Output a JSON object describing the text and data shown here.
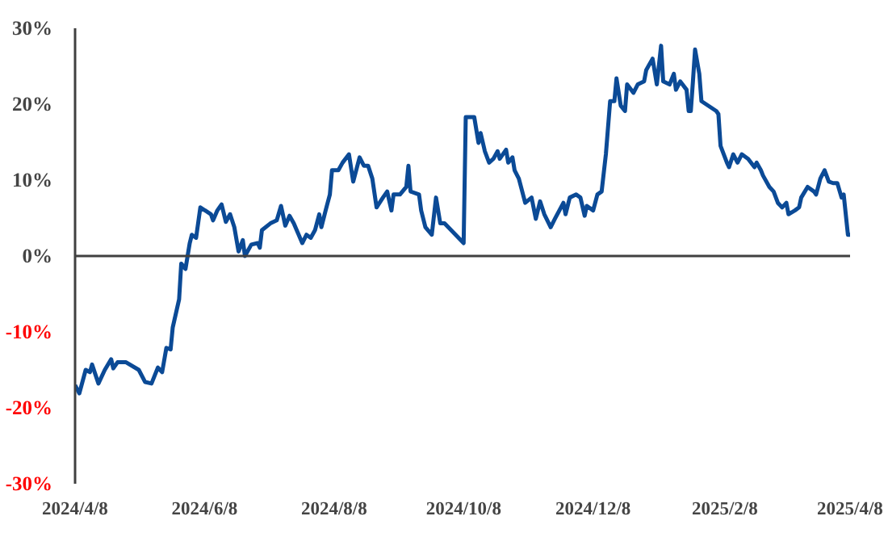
{
  "chart_data": {
    "type": "line",
    "x": [
      "2024-04-08",
      "2024-04-10",
      "2024-04-13",
      "2024-04-15",
      "2024-04-16",
      "2024-04-19",
      "2024-04-22",
      "2024-04-25",
      "2024-04-26",
      "2024-04-28",
      "2024-05-02",
      "2024-05-08",
      "2024-05-11",
      "2024-05-14",
      "2024-05-17",
      "2024-05-19",
      "2024-05-21",
      "2024-05-23",
      "2024-05-24",
      "2024-05-27",
      "2024-05-28",
      "2024-05-30",
      "2024-05-31",
      "2024-06-01",
      "2024-06-02",
      "2024-06-04",
      "2024-06-06",
      "2024-06-11",
      "2024-06-12",
      "2024-06-14",
      "2024-06-16",
      "2024-06-18",
      "2024-06-20",
      "2024-06-22",
      "2024-06-24",
      "2024-06-26",
      "2024-06-27",
      "2024-06-30",
      "2024-07-03",
      "2024-07-04",
      "2024-07-05",
      "2024-07-09",
      "2024-07-12",
      "2024-07-14",
      "2024-07-16",
      "2024-07-18",
      "2024-07-20",
      "2024-07-22",
      "2024-07-24",
      "2024-07-26",
      "2024-07-28",
      "2024-07-30",
      "2024-08-01",
      "2024-08-02",
      "2024-08-04",
      "2024-08-06",
      "2024-08-07",
      "2024-08-10",
      "2024-08-12",
      "2024-08-15",
      "2024-08-17",
      "2024-08-20",
      "2024-08-22",
      "2024-08-24",
      "2024-08-26",
      "2024-08-28",
      "2024-08-31",
      "2024-09-02",
      "2024-09-04",
      "2024-09-05",
      "2024-09-08",
      "2024-09-11",
      "2024-09-12",
      "2024-09-13",
      "2024-09-17",
      "2024-09-18",
      "2024-09-20",
      "2024-09-23",
      "2024-09-25",
      "2024-09-27",
      "2024-09-29",
      "2024-10-08",
      "2024-10-09",
      "2024-10-13",
      "2024-10-15",
      "2024-10-16",
      "2024-10-18",
      "2024-10-20",
      "2024-10-22",
      "2024-10-24",
      "2024-10-25",
      "2024-10-28",
      "2024-10-29",
      "2024-10-31",
      "2024-11-01",
      "2024-11-03",
      "2024-11-06",
      "2024-11-09",
      "2024-11-11",
      "2024-11-13",
      "2024-11-15",
      "2024-11-18",
      "2024-11-20",
      "2024-11-24",
      "2024-11-25",
      "2024-11-27",
      "2024-11-30",
      "2024-12-02",
      "2024-12-04",
      "2024-12-05",
      "2024-12-08",
      "2024-12-10",
      "2024-12-12",
      "2024-12-14",
      "2024-12-16",
      "2024-12-18",
      "2024-12-19",
      "2024-12-21",
      "2024-12-23",
      "2024-12-24",
      "2024-12-27",
      "2024-12-29",
      "2025-01-01",
      "2025-01-02",
      "2025-01-05",
      "2025-01-07",
      "2025-01-09",
      "2025-01-10",
      "2025-01-13",
      "2025-01-15",
      "2025-01-16",
      "2025-01-18",
      "2025-01-21",
      "2025-01-22",
      "2025-01-23",
      "2025-01-24",
      "2025-01-25",
      "2025-01-27",
      "2025-01-28",
      "2025-02-04",
      "2025-02-05",
      "2025-02-06",
      "2025-02-09",
      "2025-02-10",
      "2025-02-12",
      "2025-02-14",
      "2025-02-16",
      "2025-02-19",
      "2025-02-22",
      "2025-02-23",
      "2025-02-25",
      "2025-02-26",
      "2025-03-01",
      "2025-03-03",
      "2025-03-05",
      "2025-03-07",
      "2025-03-09",
      "2025-03-10",
      "2025-03-13",
      "2025-03-15",
      "2025-03-16",
      "2025-03-19",
      "2025-03-22",
      "2025-03-23",
      "2025-03-25",
      "2025-03-27",
      "2025-03-29",
      "2025-03-31",
      "2025-04-02",
      "2025-04-04",
      "2025-04-05",
      "2025-04-07",
      "2025-04-08"
    ],
    "series": [
      {
        "color": "#0b4a96",
        "values": [
          -17,
          -18.1,
          -15,
          -15.3,
          -14.3,
          -16.8,
          -15,
          -13.6,
          -14.8,
          -14,
          -14,
          -15,
          -16.6,
          -16.8,
          -14.7,
          -15.3,
          -12.1,
          -12.3,
          -9.4,
          -5.7,
          -1,
          -1.7,
          0,
          1.7,
          2.8,
          2.4,
          6.4,
          5.5,
          4.7,
          6,
          6.8,
          4.5,
          5.5,
          3.8,
          0.6,
          2.1,
          0,
          1.5,
          1.7,
          1.1,
          3.4,
          4.3,
          4.7,
          6.6,
          4,
          5.3,
          4.3,
          3,
          1.7,
          2.8,
          2.4,
          3.4,
          5.5,
          3.8,
          6,
          8.1,
          11.3,
          11.3,
          12.3,
          13.4,
          9.8,
          13,
          11.9,
          11.9,
          10.2,
          6.4,
          7.7,
          8.5,
          6,
          8.1,
          8.1,
          9.1,
          11.9,
          8.5,
          8.1,
          6,
          3.8,
          2.8,
          7.7,
          4.3,
          4.3,
          1.7,
          18.3,
          18.3,
          14.9,
          16.2,
          13.8,
          12.3,
          12.8,
          13.8,
          12.8,
          14,
          12.3,
          13,
          11.3,
          10.2,
          7,
          7.7,
          4.9,
          7.2,
          5.5,
          3.8,
          4.9,
          7,
          5.5,
          7.7,
          8.1,
          7.7,
          5.3,
          6.6,
          6,
          8.1,
          8.5,
          13.4,
          20.4,
          20.4,
          23.4,
          19.8,
          19.1,
          22.6,
          21.5,
          22.6,
          23,
          24.5,
          26,
          22.6,
          27.7,
          23,
          22.6,
          24,
          21.9,
          23,
          21.9,
          19.1,
          19.1,
          23,
          27.2,
          24,
          20.4,
          19.1,
          18.7,
          14.5,
          12.3,
          11.7,
          13.4,
          12.3,
          13.4,
          12.8,
          11.7,
          12.3,
          11.3,
          10.6,
          9.1,
          8.5,
          7,
          6.4,
          7,
          5.5,
          6,
          6.4,
          7.7,
          9.1,
          8.5,
          8.1,
          10.2,
          11.3,
          9.8,
          9.6,
          9.6,
          7.7,
          8.1,
          2.8,
          2.8
        ]
      }
    ],
    "xlim": [
      "2024-04-08",
      "2025-04-08"
    ],
    "xticks": [
      {
        "value": "2024-04-08",
        "label": "2024/4/8"
      },
      {
        "value": "2024-06-08",
        "label": "2024/6/8"
      },
      {
        "value": "2024-08-08",
        "label": "2024/8/8"
      },
      {
        "value": "2024-10-08",
        "label": "2024/10/8"
      },
      {
        "value": "2024-12-08",
        "label": "2024/12/8"
      },
      {
        "value": "2025-02-08",
        "label": "2025/2/8"
      },
      {
        "value": "2025-04-08",
        "label": "2025/4/8"
      }
    ],
    "ylim": [
      -30,
      30
    ],
    "yticks": [
      {
        "value": 30,
        "label": "30%"
      },
      {
        "value": 20,
        "label": "20%"
      },
      {
        "value": 10,
        "label": "10%"
      },
      {
        "value": 0,
        "label": "0%"
      },
      {
        "value": -10,
        "label": "-10%"
      },
      {
        "value": -20,
        "label": "-20%"
      },
      {
        "value": -30,
        "label": "-30%"
      }
    ],
    "ref_lines": [
      {
        "axis": "y",
        "value": 0,
        "color": "#404040"
      }
    ],
    "grid": false,
    "marker": "none",
    "line_style": "solid"
  }
}
